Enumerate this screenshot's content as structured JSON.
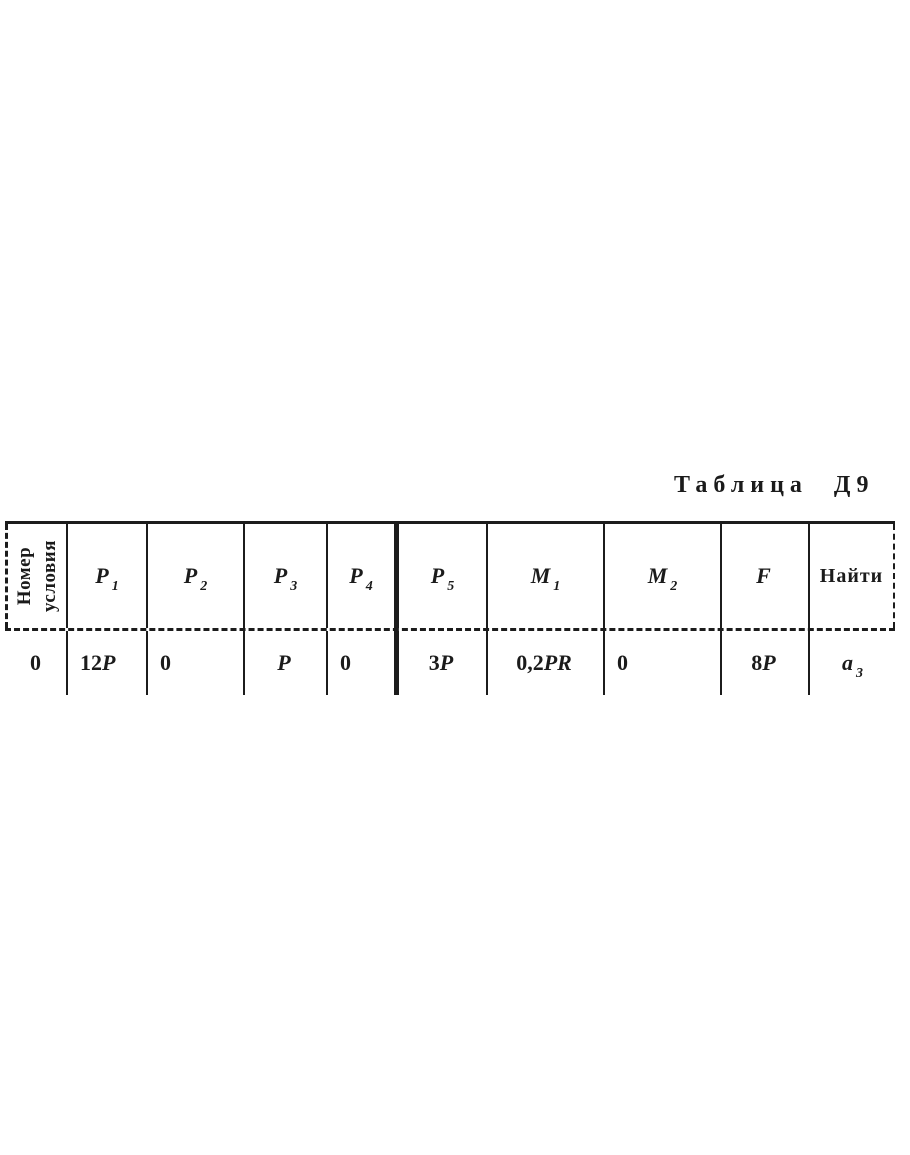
{
  "doc": {
    "caption": "Таблица Д9"
  },
  "colors": {
    "ink": "#1b1b1b",
    "background": "#ffffff"
  },
  "table": {
    "corner": {
      "line1": "Номер",
      "line2": "условия"
    },
    "columns": [
      {
        "base": "P",
        "sub": "1"
      },
      {
        "base": "P",
        "sub": "2"
      },
      {
        "base": "P",
        "sub": "3"
      },
      {
        "base": "P",
        "sub": "4"
      },
      {
        "base": "P",
        "sub": "5"
      },
      {
        "base": "M",
        "sub": "1"
      },
      {
        "base": "M",
        "sub": "2"
      },
      {
        "base": "F",
        "sub": ""
      },
      {
        "label": "Найти"
      }
    ],
    "rows": [
      {
        "number": "0",
        "cells": [
          {
            "text": "12",
            "var": "P"
          },
          {
            "text": "0"
          },
          {
            "var": "P"
          },
          {
            "text": "0"
          },
          {
            "text": "3",
            "var": "P"
          },
          {
            "text": "0,2",
            "var": "PR"
          },
          {
            "text": "0"
          },
          {
            "text": "8",
            "var": "P"
          },
          {
            "var": "a",
            "sub": "3"
          }
        ]
      }
    ]
  }
}
